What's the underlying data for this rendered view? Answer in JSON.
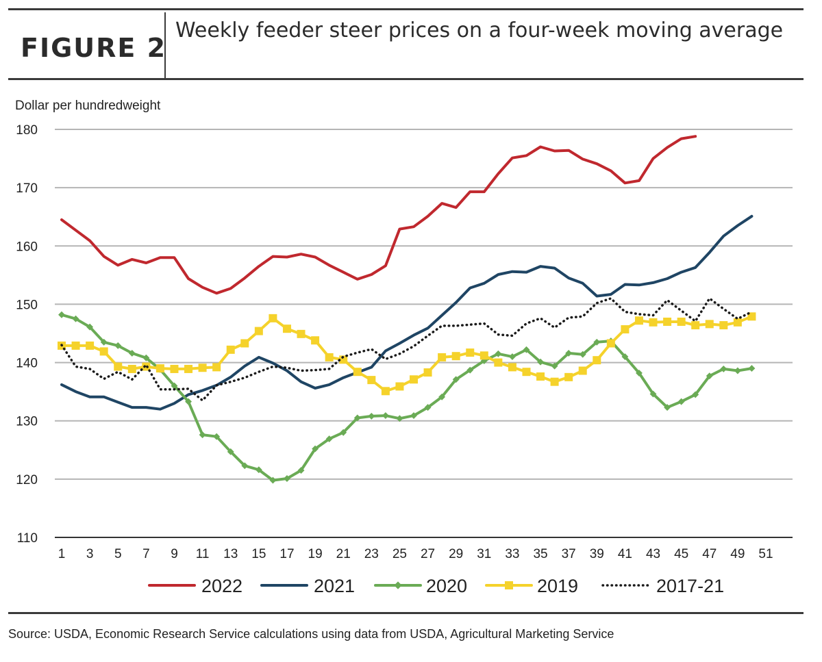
{
  "header": {
    "figure_label": "FIGURE 2",
    "title": "Weekly feeder steer prices on a four-week moving average"
  },
  "source": "Source: USDA, Economic Research Service calculations using data from USDA, Agricultural Marketing Service",
  "chart_data": {
    "type": "line",
    "title": "Weekly feeder steer prices on a four-week moving average",
    "ylabel": "Dollar per hundredweight",
    "xlabel": "",
    "ylim": [
      110,
      180
    ],
    "yticks": [
      110,
      120,
      130,
      140,
      150,
      160,
      170,
      180
    ],
    "xlim": [
      1,
      51
    ],
    "xticks": [
      1,
      3,
      5,
      7,
      9,
      11,
      13,
      15,
      17,
      19,
      21,
      23,
      25,
      27,
      29,
      31,
      33,
      35,
      37,
      39,
      41,
      43,
      45,
      47,
      49,
      51
    ],
    "grid": "horizontal",
    "legend_position": "bottom",
    "series": [
      {
        "name": "2022",
        "color": "#c0282e",
        "style": "solid",
        "marker": "none",
        "x": [
          1,
          2,
          3,
          4,
          5,
          6,
          7,
          8,
          9,
          10,
          11,
          12,
          13,
          14,
          15,
          16,
          17,
          18,
          19,
          20,
          21,
          22,
          23,
          24,
          25,
          26,
          27,
          28,
          29,
          30,
          31,
          32,
          33,
          34,
          35,
          36,
          37,
          38,
          39,
          40,
          41,
          42,
          43,
          44,
          45,
          46
        ],
        "values": [
          164.5,
          162.7,
          160.9,
          158.2,
          156.7,
          157.7,
          157.1,
          158.0,
          158.0,
          154.4,
          152.9,
          151.9,
          152.7,
          154.5,
          156.5,
          158.2,
          158.1,
          158.6,
          158.1,
          156.7,
          155.5,
          154.3,
          155.1,
          156.6,
          162.9,
          163.3,
          165.1,
          167.3,
          166.6,
          169.3,
          169.3,
          172.4,
          175.1,
          175.5,
          177.0,
          176.3,
          176.4,
          174.9,
          174.1,
          172.9,
          170.8,
          171.2,
          175.0,
          176.9,
          178.4,
          178.8
        ]
      },
      {
        "name": "2021",
        "color": "#1f4564",
        "style": "solid",
        "marker": "none",
        "x": [
          1,
          2,
          3,
          4,
          5,
          6,
          7,
          8,
          9,
          10,
          11,
          12,
          13,
          14,
          15,
          16,
          17,
          18,
          19,
          20,
          21,
          22,
          23,
          24,
          25,
          26,
          27,
          28,
          29,
          30,
          31,
          32,
          33,
          34,
          35,
          36,
          37,
          38,
          39,
          40,
          41,
          42,
          43,
          44,
          45,
          46,
          47,
          48,
          49,
          50
        ],
        "values": [
          136.2,
          135.0,
          134.1,
          134.1,
          133.2,
          132.3,
          132.3,
          132.0,
          133.0,
          134.5,
          135.2,
          136.1,
          137.5,
          139.4,
          140.9,
          139.9,
          138.6,
          136.7,
          135.6,
          136.2,
          137.4,
          138.3,
          139.2,
          142.0,
          143.3,
          144.7,
          145.9,
          148.1,
          150.3,
          152.8,
          153.6,
          155.1,
          155.6,
          155.5,
          156.5,
          156.2,
          154.5,
          153.6,
          151.4,
          151.7,
          153.4,
          153.3,
          153.7,
          154.4,
          155.5,
          156.3,
          158.9,
          161.7,
          163.5,
          165.1
        ]
      },
      {
        "name": "2020",
        "color": "#6aab55",
        "style": "solid",
        "marker": "diamond",
        "x": [
          1,
          2,
          3,
          4,
          5,
          6,
          7,
          8,
          9,
          10,
          11,
          12,
          13,
          14,
          15,
          16,
          17,
          18,
          19,
          20,
          21,
          22,
          23,
          24,
          25,
          26,
          27,
          28,
          29,
          30,
          31,
          32,
          33,
          34,
          35,
          36,
          37,
          38,
          39,
          40,
          41,
          42,
          43,
          44,
          45,
          46,
          47,
          48,
          49,
          50
        ],
        "values": [
          148.2,
          147.5,
          146.1,
          143.5,
          142.9,
          141.6,
          140.8,
          138.8,
          136.0,
          133.3,
          127.6,
          127.3,
          124.7,
          122.3,
          121.6,
          119.8,
          120.1,
          121.5,
          125.2,
          126.9,
          128.0,
          130.5,
          130.8,
          130.9,
          130.4,
          130.9,
          132.3,
          134.1,
          137.1,
          138.7,
          140.3,
          141.5,
          141.0,
          142.2,
          140.1,
          139.4,
          141.6,
          141.4,
          143.5,
          143.7,
          141.0,
          138.2,
          134.6,
          132.3,
          133.3,
          134.5,
          137.7,
          138.9,
          138.6,
          139.0
        ]
      },
      {
        "name": "2019",
        "color": "#f5d22b",
        "style": "solid",
        "marker": "square",
        "x": [
          1,
          2,
          3,
          4,
          5,
          6,
          7,
          8,
          9,
          10,
          11,
          12,
          13,
          14,
          15,
          16,
          17,
          18,
          19,
          20,
          21,
          22,
          23,
          24,
          25,
          26,
          27,
          28,
          29,
          30,
          31,
          32,
          33,
          34,
          35,
          36,
          37,
          38,
          39,
          40,
          41,
          42,
          43,
          44,
          45,
          46,
          47,
          48,
          49,
          50
        ],
        "values": [
          142.9,
          142.9,
          142.9,
          141.9,
          139.3,
          138.9,
          139.3,
          139.0,
          138.9,
          138.9,
          139.1,
          139.2,
          142.2,
          143.3,
          145.4,
          147.6,
          145.8,
          144.9,
          143.8,
          140.9,
          140.5,
          138.4,
          137.0,
          135.1,
          135.9,
          137.1,
          138.3,
          140.9,
          141.1,
          141.7,
          141.2,
          140.0,
          139.2,
          138.4,
          137.6,
          136.7,
          137.5,
          138.6,
          140.4,
          143.3,
          145.7,
          147.2,
          146.9,
          147.0,
          147.0,
          146.4,
          146.6,
          146.4,
          146.9,
          147.9
        ]
      },
      {
        "name": "2017-21",
        "color": "#1a1a1a",
        "style": "dotted",
        "marker": "none",
        "x": [
          1,
          2,
          3,
          4,
          5,
          6,
          7,
          8,
          9,
          10,
          11,
          12,
          13,
          14,
          15,
          16,
          17,
          18,
          19,
          20,
          21,
          22,
          23,
          24,
          25,
          26,
          27,
          28,
          29,
          30,
          31,
          32,
          33,
          34,
          35,
          36,
          37,
          38,
          39,
          40,
          41,
          42,
          43,
          44,
          45,
          46,
          47,
          48,
          49,
          50
        ],
        "values": [
          143.0,
          139.3,
          138.9,
          137.2,
          138.4,
          137.1,
          139.6,
          135.4,
          135.4,
          135.5,
          133.5,
          136.1,
          136.7,
          137.4,
          138.4,
          139.3,
          139.1,
          138.6,
          138.7,
          138.9,
          141.0,
          141.7,
          142.3,
          140.6,
          141.5,
          142.8,
          144.6,
          146.3,
          146.3,
          146.5,
          146.7,
          144.8,
          144.6,
          146.7,
          147.6,
          146.0,
          147.7,
          147.9,
          150.2,
          151.0,
          148.7,
          148.3,
          148.1,
          150.7,
          148.9,
          147.1,
          151.0,
          149.2,
          147.5,
          148.7
        ]
      }
    ]
  }
}
